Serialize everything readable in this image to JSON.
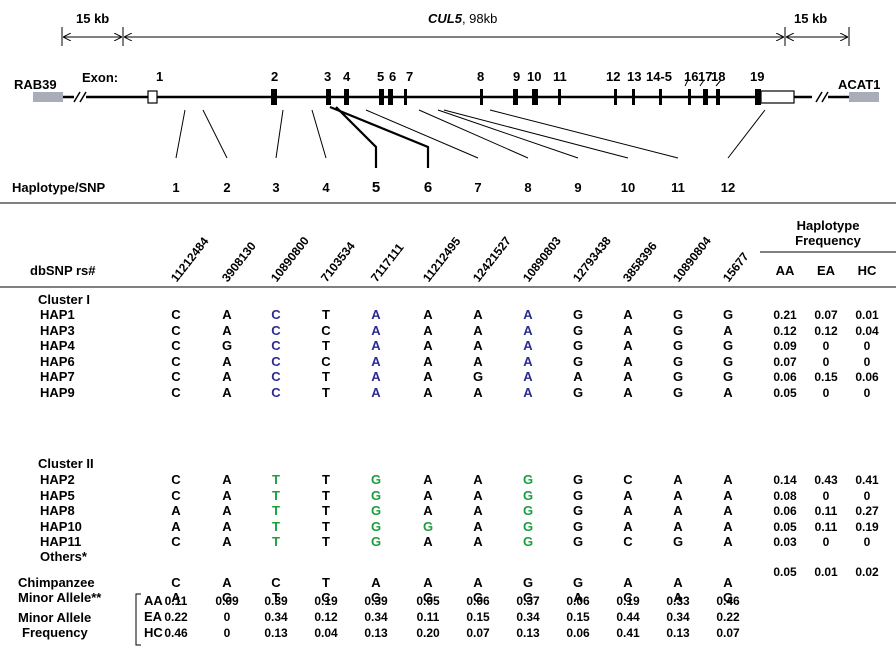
{
  "top": {
    "left_kb": "15 kb",
    "gene": "CUL5",
    "gene_size": ", 98kb",
    "right_kb": "15 kb",
    "left_gene": "RAB39",
    "right_gene": "ACAT1",
    "exon_label": "Exon:",
    "exons": [
      "1",
      "2",
      "3",
      "4",
      "5",
      "6",
      "7",
      "8",
      "9",
      "10",
      "11",
      "12",
      "13",
      "14-5",
      "16",
      "17",
      "18",
      "19"
    ],
    "haplotype_snp_label": "Haplotype/SNP",
    "snp_numbers": [
      "1",
      "2",
      "3",
      "4",
      "5",
      "6",
      "7",
      "8",
      "9",
      "10",
      "11",
      "12"
    ]
  },
  "table": {
    "dbsnp_label": "dbSNP rs#",
    "rs_ids": [
      "11212484",
      "3908130",
      "10890800",
      "7103534",
      "7117111",
      "11212495",
      "12421527",
      "10890803",
      "12793438",
      "3858396",
      "10890804",
      "15677"
    ],
    "freq_header": "Haplotype Frequency",
    "freq_cols": [
      "AA",
      "EA",
      "HC"
    ],
    "cluster1_label": "Cluster I",
    "cluster1": [
      {
        "hap": "HAP1",
        "alleles": [
          "C",
          "A",
          "C",
          "T",
          "A",
          "A",
          "A",
          "A",
          "G",
          "A",
          "G",
          "G"
        ],
        "freq": [
          "0.21",
          "0.07",
          "0.01"
        ]
      },
      {
        "hap": "HAP3",
        "alleles": [
          "C",
          "A",
          "C",
          "C",
          "A",
          "A",
          "A",
          "A",
          "G",
          "A",
          "G",
          "A"
        ],
        "freq": [
          "0.12",
          "0.12",
          "0.04"
        ]
      },
      {
        "hap": "HAP4",
        "alleles": [
          "C",
          "G",
          "C",
          "T",
          "A",
          "A",
          "A",
          "A",
          "G",
          "A",
          "G",
          "G"
        ],
        "freq": [
          "0.09",
          "0",
          "0"
        ]
      },
      {
        "hap": "HAP6",
        "alleles": [
          "C",
          "A",
          "C",
          "C",
          "A",
          "A",
          "A",
          "A",
          "G",
          "A",
          "G",
          "G"
        ],
        "freq": [
          "0.07",
          "0",
          "0"
        ]
      },
      {
        "hap": "HAP7",
        "alleles": [
          "C",
          "A",
          "C",
          "T",
          "A",
          "A",
          "G",
          "A",
          "A",
          "A",
          "G",
          "G"
        ],
        "freq": [
          "0.06",
          "0.15",
          "0.06"
        ]
      },
      {
        "hap": "HAP9",
        "alleles": [
          "C",
          "A",
          "C",
          "T",
          "A",
          "A",
          "A",
          "A",
          "G",
          "A",
          "G",
          "A"
        ],
        "freq": [
          "0.05",
          "0",
          "0"
        ]
      }
    ],
    "cluster2_label": "Cluster II",
    "cluster2": [
      {
        "hap": "HAP2",
        "alleles": [
          "C",
          "A",
          "T",
          "T",
          "G",
          "A",
          "A",
          "G",
          "G",
          "C",
          "A",
          "A"
        ],
        "freq": [
          "0.14",
          "0.43",
          "0.41"
        ]
      },
      {
        "hap": "HAP5",
        "alleles": [
          "C",
          "A",
          "T",
          "T",
          "G",
          "A",
          "A",
          "G",
          "G",
          "A",
          "A",
          "A"
        ],
        "freq": [
          "0.08",
          "0",
          "0"
        ]
      },
      {
        "hap": "HAP8",
        "alleles": [
          "A",
          "A",
          "T",
          "T",
          "G",
          "A",
          "A",
          "G",
          "G",
          "A",
          "A",
          "A"
        ],
        "freq": [
          "0.06",
          "0.11",
          "0.27"
        ]
      },
      {
        "hap": "HAP10",
        "alleles": [
          "A",
          "A",
          "T",
          "T",
          "G",
          "G",
          "A",
          "G",
          "G",
          "A",
          "A",
          "A"
        ],
        "freq": [
          "0.05",
          "0.11",
          "0.19"
        ]
      },
      {
        "hap": "HAP11",
        "alleles": [
          "C",
          "A",
          "T",
          "T",
          "G",
          "A",
          "A",
          "G",
          "G",
          "C",
          "G",
          "A"
        ],
        "freq": [
          "0.03",
          "0",
          "0"
        ]
      }
    ],
    "others": {
      "label": "Others*",
      "freq": [
        "0.05",
        "0.01",
        "0.02"
      ]
    },
    "chimp": {
      "label": "Chimpanzee",
      "alleles": [
        "C",
        "A",
        "C",
        "T",
        "A",
        "A",
        "A",
        "G",
        "G",
        "A",
        "A",
        "A"
      ]
    },
    "minor": {
      "label": "Minor Allele**",
      "alleles": [
        "A",
        "G",
        "T",
        "C",
        "G",
        "G",
        "G",
        "G",
        "A",
        "C",
        "A",
        "G"
      ]
    },
    "maf_label_1": "Minor Allele",
    "maf_label_2": "Frequency",
    "maf": [
      {
        "pop": "AA",
        "values": [
          "0.11",
          "0.09",
          "0.39",
          "0.19",
          "0.39",
          "0.05",
          "0.06",
          "0.37",
          "0.06",
          "0.19",
          "0.33",
          "0.46"
        ]
      },
      {
        "pop": "EA",
        "values": [
          "0.22",
          "0",
          "0.34",
          "0.12",
          "0.34",
          "0.11",
          "0.15",
          "0.34",
          "0.15",
          "0.44",
          "0.34",
          "0.22"
        ]
      },
      {
        "pop": "HC",
        "values": [
          "0.46",
          "0",
          "0.13",
          "0.04",
          "0.13",
          "0.20",
          "0.07",
          "0.13",
          "0.06",
          "0.41",
          "0.13",
          "0.07"
        ]
      }
    ]
  },
  "colors": {
    "cluster1_highlight": "#2b2b8f",
    "cluster2_highlight": "#1b9e3e",
    "flank_box": "#a9adb8"
  }
}
